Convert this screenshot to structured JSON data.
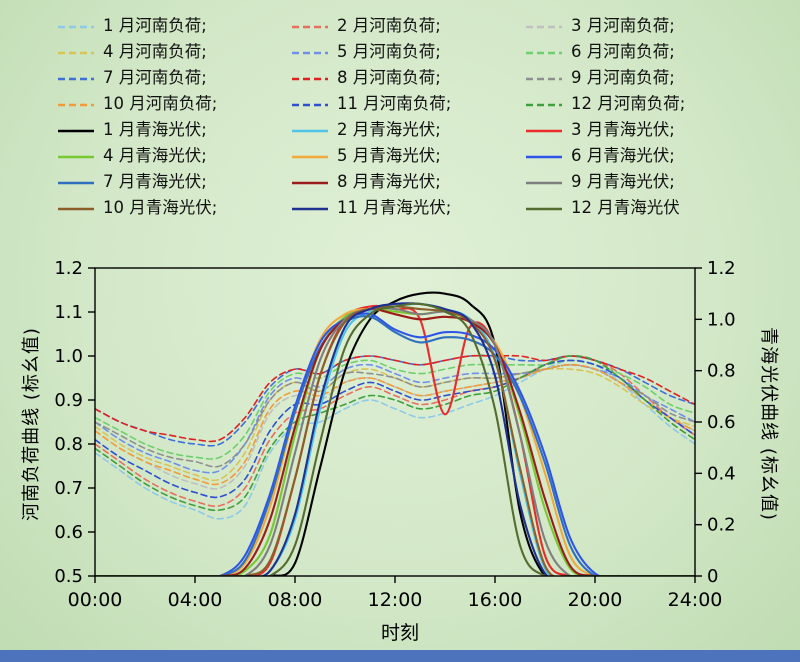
{
  "page": {
    "background_center": "#e0f0d6",
    "background_edge": "#bfdcb2",
    "footer_bar_color": "#4e73bd"
  },
  "legend": {
    "items": [
      {
        "label": "1 月河南负荷;",
        "color": "#8ec9e8",
        "dashed": true
      },
      {
        "label": "2 月河南负荷;",
        "color": "#e8705f",
        "dashed": true
      },
      {
        "label": "3 月河南负荷;",
        "color": "#bfbfbf",
        "dashed": true
      },
      {
        "label": "4 月河南负荷;",
        "color": "#d9c356",
        "dashed": true
      },
      {
        "label": "5 月河南负荷;",
        "color": "#6f8fe8",
        "dashed": true
      },
      {
        "label": "6 月河南负荷;",
        "color": "#6fcf6f",
        "dashed": true
      },
      {
        "label": "7 月河南负荷;",
        "color": "#3f6fd8",
        "dashed": true
      },
      {
        "label": "8 月河南负荷;",
        "color": "#e02020",
        "dashed": true
      },
      {
        "label": "9 月河南负荷;",
        "color": "#8f8f8f",
        "dashed": true
      },
      {
        "label": "10 月河南负荷;",
        "color": "#f29b38",
        "dashed": true
      },
      {
        "label": "11 月河南负荷;",
        "color": "#2f4fd0",
        "dashed": true
      },
      {
        "label": "12 月河南负荷;",
        "color": "#3f9f3f",
        "dashed": true
      },
      {
        "label": "1 月青海光伏;",
        "color": "#000000",
        "dashed": false
      },
      {
        "label": "2 月青海光伏;",
        "color": "#4fc3e8",
        "dashed": false
      },
      {
        "label": "3 月青海光伏;",
        "color": "#e82c2c",
        "dashed": false
      },
      {
        "label": "4 月青海光伏;",
        "color": "#78c832",
        "dashed": false
      },
      {
        "label": "5 月青海光伏;",
        "color": "#f2a93b",
        "dashed": false
      },
      {
        "label": "6 月青海光伏;",
        "color": "#2f55e8",
        "dashed": false
      },
      {
        "label": "7 月青海光伏;",
        "color": "#2f6fbf",
        "dashed": false
      },
      {
        "label": "8 月青海光伏;",
        "color": "#9b1c1c",
        "dashed": false
      },
      {
        "label": "9 月青海光伏;",
        "color": "#7f7f7f",
        "dashed": false
      },
      {
        "label": "10 月青海光伏;",
        "color": "#8b5e2a",
        "dashed": false
      },
      {
        "label": "11 月青海光伏;",
        "color": "#1f3090",
        "dashed": false
      },
      {
        "label": "12 月青海光伏",
        "color": "#556b2f",
        "dashed": false
      }
    ]
  },
  "chart_data": {
    "type": "line",
    "xlabel": "时刻",
    "x_hours": [
      0,
      1,
      2,
      3,
      4,
      5,
      6,
      7,
      8,
      9,
      10,
      11,
      12,
      13,
      14,
      15,
      16,
      17,
      18,
      19,
      20,
      21,
      22,
      23,
      24
    ],
    "x_tick_hours": [
      0,
      4,
      8,
      12,
      16,
      20,
      24
    ],
    "x_tick_labels": [
      "00:00",
      "04:00",
      "08:00",
      "12:00",
      "16:00",
      "20:00",
      "24:00"
    ],
    "left_axis": {
      "title": "河南负荷曲线 (标幺值)",
      "min": 0.5,
      "max": 1.2,
      "ticks": [
        0.5,
        0.6,
        0.7,
        0.8,
        0.9,
        1.0,
        1.1,
        1.2
      ],
      "tick_labels": [
        "0.5",
        "0.6",
        "0.7",
        "0.8",
        "0.9",
        "1.0",
        "1.1",
        "1.2"
      ]
    },
    "right_axis": {
      "title": "青海光伏曲线 (标幺值)",
      "min": 0,
      "max": 1.2,
      "ticks": [
        0,
        0.2,
        0.4,
        0.6,
        0.8,
        1.0,
        1.2
      ],
      "tick_labels": [
        "0",
        "0.2",
        "0.4",
        "0.6",
        "0.8",
        "1.0",
        "1.2"
      ]
    },
    "grid": false,
    "legend_position": "top",
    "series": [
      {
        "name": "1月河南负荷",
        "axis": "left",
        "color": "#8ec9e8",
        "dashed": true,
        "values": [
          0.78,
          0.74,
          0.7,
          0.67,
          0.65,
          0.63,
          0.66,
          0.78,
          0.84,
          0.85,
          0.88,
          0.9,
          0.88,
          0.86,
          0.87,
          0.89,
          0.91,
          0.94,
          0.97,
          0.99,
          0.98,
          0.94,
          0.89,
          0.84,
          0.8
        ]
      },
      {
        "name": "2月河南负荷",
        "axis": "left",
        "color": "#e8705f",
        "dashed": true,
        "values": [
          0.8,
          0.76,
          0.72,
          0.69,
          0.67,
          0.66,
          0.7,
          0.81,
          0.87,
          0.88,
          0.91,
          0.93,
          0.91,
          0.89,
          0.9,
          0.92,
          0.93,
          0.95,
          0.98,
          1.0,
          0.99,
          0.96,
          0.91,
          0.86,
          0.82
        ]
      },
      {
        "name": "3月河南负荷",
        "axis": "left",
        "color": "#bfbfbf",
        "dashed": true,
        "values": [
          0.83,
          0.79,
          0.76,
          0.73,
          0.71,
          0.7,
          0.75,
          0.87,
          0.91,
          0.9,
          0.94,
          0.95,
          0.93,
          0.91,
          0.92,
          0.93,
          0.94,
          0.95,
          0.97,
          0.98,
          0.97,
          0.94,
          0.9,
          0.86,
          0.83
        ]
      },
      {
        "name": "4月河南负荷",
        "axis": "left",
        "color": "#d9c356",
        "dashed": true,
        "values": [
          0.84,
          0.8,
          0.77,
          0.75,
          0.73,
          0.72,
          0.78,
          0.9,
          0.94,
          0.92,
          0.96,
          0.97,
          0.95,
          0.93,
          0.94,
          0.95,
          0.95,
          0.96,
          0.97,
          0.97,
          0.96,
          0.93,
          0.89,
          0.86,
          0.84
        ]
      },
      {
        "name": "5月河南负荷",
        "axis": "left",
        "color": "#6f8fe8",
        "dashed": true,
        "values": [
          0.85,
          0.81,
          0.78,
          0.76,
          0.74,
          0.74,
          0.8,
          0.91,
          0.95,
          0.93,
          0.97,
          0.98,
          0.96,
          0.94,
          0.95,
          0.96,
          0.96,
          0.96,
          0.97,
          0.98,
          0.97,
          0.95,
          0.91,
          0.88,
          0.85
        ]
      },
      {
        "name": "6月河南负荷",
        "axis": "left",
        "color": "#6fcf6f",
        "dashed": true,
        "values": [
          0.86,
          0.83,
          0.8,
          0.78,
          0.77,
          0.77,
          0.82,
          0.92,
          0.96,
          0.95,
          0.98,
          0.99,
          0.97,
          0.96,
          0.97,
          0.98,
          0.98,
          0.98,
          0.98,
          0.99,
          0.98,
          0.96,
          0.93,
          0.89,
          0.87
        ]
      },
      {
        "name": "7月河南负荷",
        "axis": "left",
        "color": "#3f6fd8",
        "dashed": true,
        "values": [
          0.88,
          0.85,
          0.83,
          0.81,
          0.8,
          0.8,
          0.85,
          0.93,
          0.97,
          0.96,
          0.99,
          1.0,
          0.99,
          0.98,
          0.99,
          1.0,
          1.0,
          0.99,
          0.99,
          1.0,
          0.99,
          0.97,
          0.94,
          0.91,
          0.89
        ]
      },
      {
        "name": "8月河南负荷",
        "axis": "left",
        "color": "#e02020",
        "dashed": true,
        "values": [
          0.88,
          0.85,
          0.83,
          0.82,
          0.81,
          0.81,
          0.86,
          0.94,
          0.97,
          0.96,
          0.99,
          1.0,
          0.99,
          0.98,
          0.99,
          1.0,
          1.0,
          1.0,
          0.99,
          1.0,
          0.99,
          0.97,
          0.95,
          0.92,
          0.89
        ]
      },
      {
        "name": "9月河南负荷",
        "axis": "left",
        "color": "#8f8f8f",
        "dashed": true,
        "values": [
          0.85,
          0.82,
          0.79,
          0.77,
          0.76,
          0.75,
          0.8,
          0.9,
          0.94,
          0.92,
          0.96,
          0.96,
          0.95,
          0.93,
          0.94,
          0.95,
          0.95,
          0.96,
          0.97,
          0.98,
          0.97,
          0.94,
          0.91,
          0.87,
          0.85
        ]
      },
      {
        "name": "10月河南负荷",
        "axis": "left",
        "color": "#f29b38",
        "dashed": true,
        "values": [
          0.83,
          0.79,
          0.76,
          0.74,
          0.72,
          0.71,
          0.76,
          0.88,
          0.92,
          0.91,
          0.94,
          0.95,
          0.93,
          0.91,
          0.92,
          0.93,
          0.94,
          0.95,
          0.97,
          0.98,
          0.97,
          0.94,
          0.9,
          0.86,
          0.83
        ]
      },
      {
        "name": "11月河南负荷",
        "axis": "left",
        "color": "#2f4fd0",
        "dashed": true,
        "values": [
          0.81,
          0.77,
          0.74,
          0.71,
          0.69,
          0.68,
          0.72,
          0.83,
          0.89,
          0.89,
          0.92,
          0.94,
          0.92,
          0.9,
          0.91,
          0.92,
          0.93,
          0.95,
          0.98,
          0.99,
          0.98,
          0.95,
          0.9,
          0.86,
          0.82
        ]
      },
      {
        "name": "12月河南负荷",
        "axis": "left",
        "color": "#3f9f3f",
        "dashed": true,
        "values": [
          0.79,
          0.75,
          0.71,
          0.68,
          0.66,
          0.65,
          0.68,
          0.79,
          0.85,
          0.87,
          0.89,
          0.91,
          0.9,
          0.88,
          0.89,
          0.91,
          0.92,
          0.95,
          0.98,
          1.0,
          0.99,
          0.95,
          0.9,
          0.85,
          0.81
        ]
      },
      {
        "name": "1月青海光伏",
        "axis": "right",
        "color": "#000000",
        "dashed": false,
        "values": [
          0,
          0,
          0,
          0,
          0,
          0,
          0,
          0,
          0.05,
          0.42,
          0.8,
          1.0,
          1.07,
          1.1,
          1.1,
          1.06,
          0.9,
          0.25,
          0,
          0,
          0,
          0,
          0,
          0,
          0
        ]
      },
      {
        "name": "2月青海光伏",
        "axis": "right",
        "color": "#4fc3e8",
        "dashed": false,
        "values": [
          0,
          0,
          0,
          0,
          0,
          0,
          0,
          0.02,
          0.22,
          0.65,
          0.95,
          1.03,
          1.05,
          1.06,
          1.04,
          1.0,
          0.85,
          0.4,
          0.03,
          0,
          0,
          0,
          0,
          0,
          0
        ]
      },
      {
        "name": "3月青海光伏",
        "axis": "right",
        "color": "#e82c2c",
        "dashed": false,
        "values": [
          0,
          0,
          0,
          0,
          0,
          0,
          0,
          0.05,
          0.38,
          0.78,
          1.0,
          1.05,
          1.04,
          1.0,
          0.63,
          0.97,
          0.9,
          0.55,
          0.08,
          0,
          0,
          0,
          0,
          0,
          0
        ]
      },
      {
        "name": "4月青海光伏",
        "axis": "right",
        "color": "#78c832",
        "dashed": false,
        "values": [
          0,
          0,
          0,
          0,
          0,
          0,
          0.02,
          0.16,
          0.55,
          0.88,
          1.01,
          1.04,
          1.03,
          1.02,
          1.03,
          1.0,
          0.9,
          0.62,
          0.26,
          0.03,
          0,
          0,
          0,
          0,
          0
        ]
      },
      {
        "name": "5月青海光伏",
        "axis": "right",
        "color": "#f2a93b",
        "dashed": false,
        "values": [
          0,
          0,
          0,
          0,
          0,
          0,
          0.05,
          0.27,
          0.64,
          0.92,
          1.02,
          1.04,
          1.02,
          1.0,
          1.01,
          0.99,
          0.91,
          0.7,
          0.4,
          0.08,
          0,
          0,
          0,
          0,
          0
        ]
      },
      {
        "name": "6月青海光伏",
        "axis": "right",
        "color": "#2f55e8",
        "dashed": false,
        "values": [
          0,
          0,
          0,
          0,
          0,
          0,
          0.08,
          0.32,
          0.66,
          0.91,
          1.0,
          1.02,
          0.96,
          0.93,
          0.95,
          0.94,
          0.88,
          0.72,
          0.47,
          0.15,
          0.01,
          0,
          0,
          0,
          0
        ]
      },
      {
        "name": "7月青海光伏",
        "axis": "right",
        "color": "#2f6fbf",
        "dashed": false,
        "values": [
          0,
          0,
          0,
          0,
          0,
          0,
          0.06,
          0.3,
          0.64,
          0.89,
          0.99,
          1.01,
          0.95,
          0.91,
          0.93,
          0.92,
          0.86,
          0.7,
          0.44,
          0.12,
          0,
          0,
          0,
          0,
          0
        ]
      },
      {
        "name": "8月青海光伏",
        "axis": "right",
        "color": "#9b1c1c",
        "dashed": false,
        "values": [
          0,
          0,
          0,
          0,
          0,
          0,
          0.03,
          0.22,
          0.58,
          0.88,
          1.0,
          1.04,
          1.02,
          1.0,
          1.01,
          0.99,
          0.9,
          0.64,
          0.3,
          0.04,
          0,
          0,
          0,
          0,
          0
        ]
      },
      {
        "name": "9月青海光伏",
        "axis": "right",
        "color": "#7f7f7f",
        "dashed": false,
        "values": [
          0,
          0,
          0,
          0,
          0,
          0,
          0,
          0.12,
          0.48,
          0.84,
          1.0,
          1.04,
          1.04,
          1.02,
          1.03,
          1.0,
          0.9,
          0.55,
          0.14,
          0,
          0,
          0,
          0,
          0,
          0
        ]
      },
      {
        "name": "10月青海光伏",
        "axis": "right",
        "color": "#8b5e2a",
        "dashed": false,
        "values": [
          0,
          0,
          0,
          0,
          0,
          0,
          0,
          0.06,
          0.38,
          0.78,
          0.99,
          1.04,
          1.05,
          1.04,
          1.03,
          0.99,
          0.84,
          0.42,
          0.04,
          0,
          0,
          0,
          0,
          0,
          0
        ]
      },
      {
        "name": "11月青海光伏",
        "axis": "right",
        "color": "#1f3090",
        "dashed": false,
        "values": [
          0,
          0,
          0,
          0,
          0,
          0,
          0,
          0.02,
          0.24,
          0.68,
          0.97,
          1.04,
          1.06,
          1.06,
          1.04,
          0.99,
          0.78,
          0.28,
          0.01,
          0,
          0,
          0,
          0,
          0,
          0
        ]
      },
      {
        "name": "12月青海光伏",
        "axis": "right",
        "color": "#556b2f",
        "dashed": false,
        "values": [
          0,
          0,
          0,
          0,
          0,
          0,
          0,
          0,
          0.12,
          0.52,
          0.89,
          1.02,
          1.05,
          1.06,
          1.03,
          0.95,
          0.65,
          0.12,
          0,
          0,
          0,
          0,
          0,
          0,
          0
        ]
      }
    ]
  }
}
